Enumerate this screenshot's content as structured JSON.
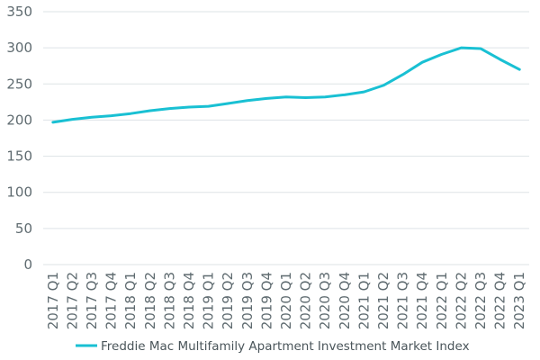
{
  "chart_data": {
    "type": "line",
    "title": "",
    "xlabel": "",
    "ylabel": "",
    "ylim": [
      0,
      350
    ],
    "yticks": [
      0,
      50,
      100,
      150,
      200,
      250,
      300,
      350
    ],
    "grid": true,
    "legend_position": "bottom",
    "categories": [
      "2017 Q1",
      "2017 Q2",
      "2017 Q3",
      "2017 Q4",
      "2018 Q1",
      "2018 Q2",
      "2018 Q3",
      "2018 Q4",
      "2019 Q1",
      "2019 Q2",
      "2019 Q3",
      "2019 Q4",
      "2020 Q1",
      "2020 Q2",
      "2020 Q3",
      "2020 Q4",
      "2021 Q1",
      "2021 Q2",
      "2021 Q3",
      "2021 Q4",
      "2022 Q1",
      "2022 Q2",
      "2022 Q3",
      "2022 Q4",
      "2023 Q1"
    ],
    "series": [
      {
        "name": "Freddie Mac Multifamily Apartment Investment Market Index",
        "color": "#19c0d3",
        "values": [
          197,
          201,
          204,
          206,
          209,
          213,
          216,
          218,
          219,
          223,
          227,
          230,
          232,
          231,
          232,
          235,
          239,
          248,
          263,
          280,
          291,
          300,
          299,
          284,
          270
        ]
      }
    ],
    "colors": {
      "grid": "#dde3e6",
      "axis_text": "#5f6b70",
      "line": "#19c0d3"
    }
  }
}
